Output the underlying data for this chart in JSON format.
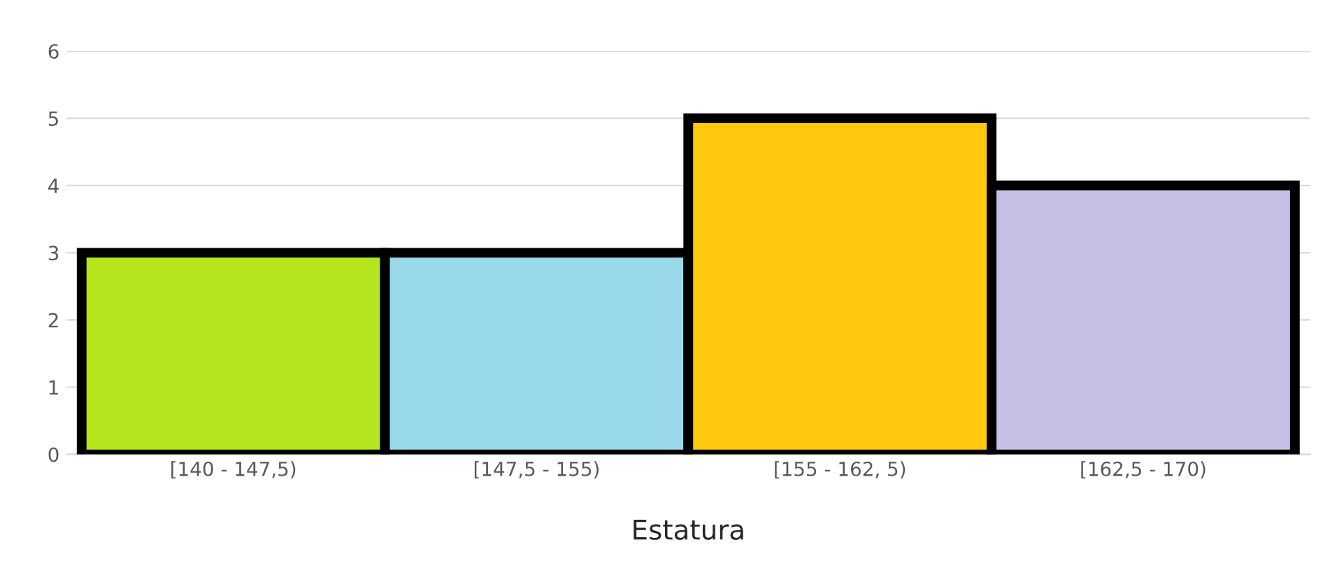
{
  "chart_data": {
    "type": "bar",
    "xlabel": "Estatura",
    "categories": [
      "[140 - 147,5)",
      "[147,5 - 155)",
      "[155 - 162, 5)",
      "[162,5 - 170)"
    ],
    "values": [
      3,
      3,
      5,
      4
    ],
    "colors": [
      "#b5e61d",
      "#99d9ea",
      "#ffc90e",
      "#c8bfe7"
    ],
    "ylim": [
      0,
      6
    ],
    "yticks": [
      0,
      1,
      2,
      3,
      4,
      5,
      6
    ],
    "grid": "y",
    "legend": false
  }
}
